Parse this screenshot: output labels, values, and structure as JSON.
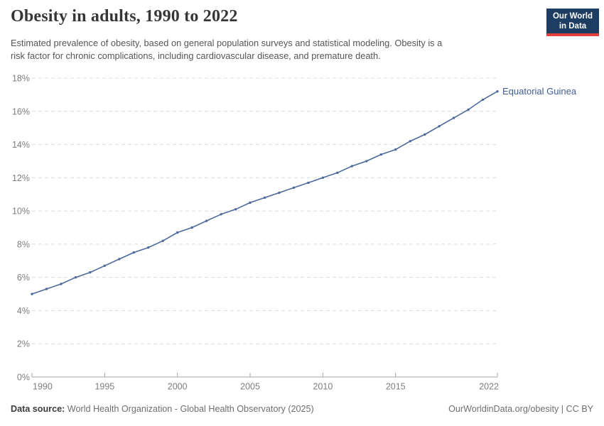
{
  "header": {
    "title": "Obesity in adults, 1990 to 2022",
    "subtitle_line1": "Estimated prevalence of obesity, based on general population surveys and statistical modeling. Obesity is a",
    "subtitle_line2": "risk factor for chronic complications, including cardiovascular disease, and premature death.",
    "logo": {
      "line1": "Our World",
      "line2": "in Data",
      "bg_color": "#1d3d63",
      "stripe_color": "#e0413c"
    }
  },
  "chart_data": {
    "type": "line",
    "title": "Obesity in adults, 1990 to 2022",
    "xlabel": "",
    "ylabel": "",
    "xlim": [
      1990,
      2022
    ],
    "ylim": [
      0,
      18
    ],
    "ytick_step": 2,
    "ytick_suffix": "%",
    "xticks": [
      1990,
      1995,
      2000,
      2005,
      2010,
      2015,
      2022
    ],
    "grid": "horizontal-dashed",
    "legend_position": "end-of-line-label",
    "series": [
      {
        "name": "Equatorial Guinea",
        "color": "#4c6a9c",
        "label_color": "#3f5e96",
        "x": [
          1990,
          1991,
          1992,
          1993,
          1994,
          1995,
          1996,
          1997,
          1998,
          1999,
          2000,
          2001,
          2002,
          2003,
          2004,
          2005,
          2006,
          2007,
          2008,
          2009,
          2010,
          2011,
          2012,
          2013,
          2014,
          2015,
          2016,
          2017,
          2018,
          2019,
          2020,
          2021,
          2022
        ],
        "values": [
          5.0,
          5.3,
          5.6,
          6.0,
          6.3,
          6.7,
          7.1,
          7.5,
          7.8,
          8.2,
          8.7,
          9.0,
          9.4,
          9.8,
          10.1,
          10.5,
          10.8,
          11.1,
          11.4,
          11.7,
          12.0,
          12.3,
          12.7,
          13.0,
          13.4,
          13.7,
          14.2,
          14.6,
          15.1,
          15.6,
          16.1,
          16.7,
          17.2
        ]
      }
    ]
  },
  "footer": {
    "datasource_label": "Data source:",
    "datasource_text": "World Health Organization - Global Health Observatory (2025)",
    "attribution": "OurWorldinData.org/obesity | CC BY"
  }
}
